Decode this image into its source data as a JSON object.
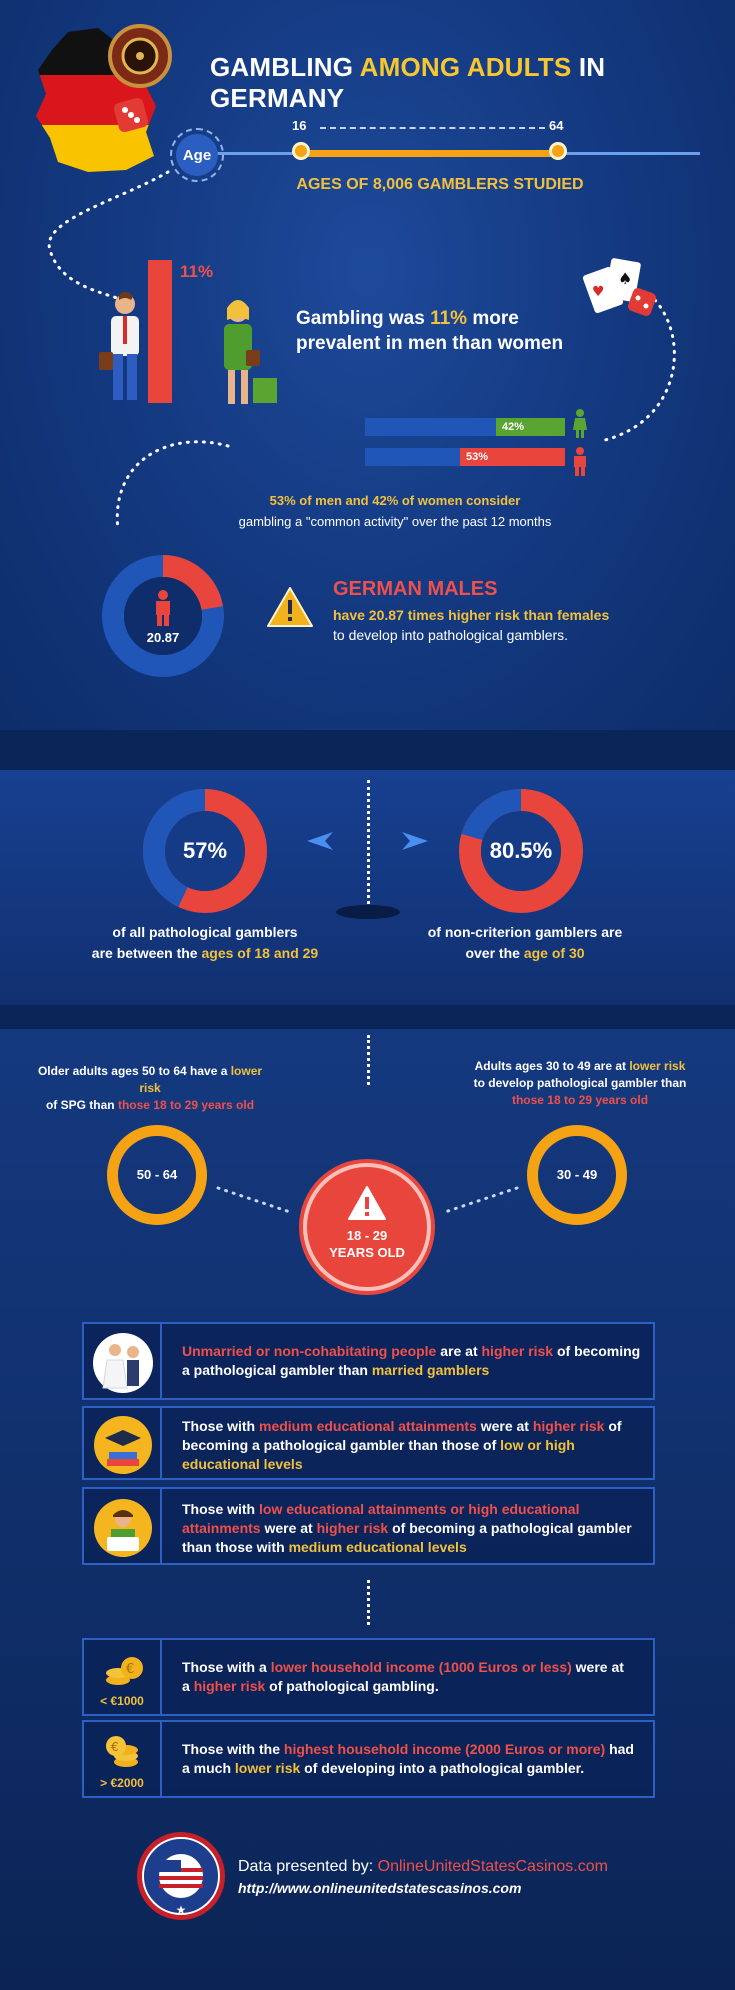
{
  "header": {
    "title_pre": "GAMBLING ",
    "title_hl": "AMONG ADULTS",
    "title_post": " IN GERMANY"
  },
  "age": {
    "badge": "Age",
    "min": "16",
    "max": "64",
    "caption": "AGES OF 8,006 GAMBLERS STUDIED"
  },
  "prevalence": {
    "bar_label": "11%",
    "text_pre": "Gambling was ",
    "text_hl": "11%",
    "text_mid": " more",
    "text_line2": "prevalent in men than women"
  },
  "common": {
    "women_pct": "42%",
    "men_pct": "53%",
    "women_value": 42,
    "men_value": 53,
    "line1": "53% of men and 42% of women consider",
    "line2": "gambling a \"common activity\" over the past 12 months"
  },
  "males": {
    "ratio": "20.87",
    "heading": "GERMAN MALES",
    "line1": "have 20.87 times higher risk than females",
    "line2": "to develop into pathological gamblers."
  },
  "stats": {
    "left": {
      "value": "57%",
      "line1": "of all pathological gamblers",
      "line2_pre": "are between the ",
      "line2_hl": "ages of 18 and 29"
    },
    "right": {
      "value": "80.5%",
      "line1": "of non-criterion gamblers are",
      "line2_pre": "over the ",
      "line2_hl": "age of 30"
    }
  },
  "risk": {
    "left_text_pre": "Older adults ages 50 to 64 have a ",
    "left_text_hl": "lower risk",
    "left_text_mid": "of SPG than ",
    "left_text_hl2": "those 18 to 29 years old",
    "right_text_pre": "Adults ages 30 to 49 are at ",
    "right_text_hl": "lower risk",
    "right_text_mid": "to develop pathological gambler than",
    "right_text_hl2": "those 18 to 29 years old",
    "circle_left": "50 - 64",
    "circle_right": "30 - 49",
    "center_line1": "18 - 29",
    "center_line2": "YEARS OLD"
  },
  "findings": [
    {
      "icon": "wedding-couple-icon"
    },
    {
      "icon": "graduation-books-icon"
    },
    {
      "icon": "student-laptop-icon"
    }
  ],
  "income": {
    "low_label": "< €1000",
    "high_label": "> €2000"
  },
  "footer": {
    "logo_text": "ONLINE UNITED STATES CASINOS",
    "presented": "Data presented by: ",
    "site_name": "OnlineUnitedStatesCasinos.com",
    "url": "http://www.onlineunitedstatescasinos.com"
  },
  "colors": {
    "accent_yellow": "#f2c13b",
    "accent_red": "#f0504a",
    "ring_blue": "#1f56b8",
    "orange_circle": "#f5a314",
    "female_green": "#5aa532"
  }
}
